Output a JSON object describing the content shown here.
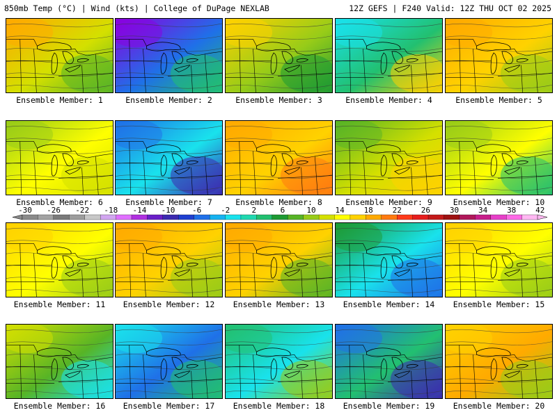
{
  "header": {
    "left": "850mb Temp (°C) | Wind (kts) | College of DuPage NEXLAB",
    "right": "12Z GEFS | F240 Valid: 12Z THU OCT 02 2025"
  },
  "colorbar": {
    "ticks": [
      "-30",
      "-26",
      "-22",
      "-18",
      "-14",
      "-10",
      "-6",
      "-2",
      "2",
      "6",
      "10",
      "14",
      "18",
      "22",
      "26",
      "30",
      "34",
      "38",
      "42"
    ],
    "colors": [
      "#8a8a8a",
      "#a3a3a3",
      "#7a7a7a",
      "#9d9d9d",
      "#c8c8c8",
      "#d2a6f0",
      "#e070ff",
      "#b030e0",
      "#6a1fc8",
      "#3c2ab0",
      "#1f3fd0",
      "#1f70e8",
      "#16b2f0",
      "#19e2ec",
      "#20d8b0",
      "#22c070",
      "#1e9a33",
      "#57b426",
      "#98cc18",
      "#d4e000",
      "#ffff00",
      "#ffd200",
      "#ffaa00",
      "#ff7a10",
      "#ff3a1a",
      "#e61e1e",
      "#c41a1a",
      "#9e1212",
      "#b0185a",
      "#c81e8a",
      "#e640c8",
      "#ff6ae6",
      "#ffb8f2"
    ]
  },
  "members": [
    {
      "label": "Ensemble Member: 1",
      "c1": "#ffaa00",
      "c2": "#d4e000",
      "c3": "#57b426"
    },
    {
      "label": "Ensemble Member: 2",
      "c1": "#8a00e0",
      "c2": "#1f70e8",
      "c3": "#22c070"
    },
    {
      "label": "Ensemble Member: 3",
      "c1": "#ffd200",
      "c2": "#98cc18",
      "c3": "#1e9a33"
    },
    {
      "label": "Ensemble Member: 4",
      "c1": "#19e2ec",
      "c2": "#22c070",
      "c3": "#ffd200"
    },
    {
      "label": "Ensemble Member: 5",
      "c1": "#ffaa00",
      "c2": "#ffd200",
      "c3": "#98cc18"
    },
    {
      "label": "Ensemble Member: 6",
      "c1": "#98cc18",
      "c2": "#ffff00",
      "c3": "#d4e000"
    },
    {
      "label": "Ensemble Member: 7",
      "c1": "#1f70e8",
      "c2": "#19e2ec",
      "c3": "#3c2ab0"
    },
    {
      "label": "Ensemble Member: 8",
      "c1": "#ffaa00",
      "c2": "#ffd200",
      "c3": "#ff7a10"
    },
    {
      "label": "Ensemble Member: 9",
      "c1": "#57b426",
      "c2": "#d4e000",
      "c3": "#ffd200"
    },
    {
      "label": "Ensemble Member: 10",
      "c1": "#98cc18",
      "c2": "#ffff00",
      "c3": "#22c070"
    },
    {
      "label": "Ensemble Member: 11",
      "c1": "#ffd200",
      "c2": "#ffff00",
      "c3": "#98cc18"
    },
    {
      "label": "Ensemble Member: 12",
      "c1": "#ffaa00",
      "c2": "#ffd200",
      "c3": "#98cc18"
    },
    {
      "label": "Ensemble Member: 13",
      "c1": "#ffaa00",
      "c2": "#ffd200",
      "c3": "#57b426"
    },
    {
      "label": "Ensemble Member: 14",
      "c1": "#1e9a33",
      "c2": "#19e2ec",
      "c3": "#1f70e8"
    },
    {
      "label": "Ensemble Member: 15",
      "c1": "#ffd200",
      "c2": "#ffff00",
      "c3": "#98cc18"
    },
    {
      "label": "Ensemble Member: 16",
      "c1": "#d4e000",
      "c2": "#57b426",
      "c3": "#19e2ec"
    },
    {
      "label": "Ensemble Member: 17",
      "c1": "#19e2ec",
      "c2": "#1f70e8",
      "c3": "#22c070"
    },
    {
      "label": "Ensemble Member: 18",
      "c1": "#22c070",
      "c2": "#19e2ec",
      "c3": "#98cc18"
    },
    {
      "label": "Ensemble Member: 19",
      "c1": "#1f70e8",
      "c2": "#22c070",
      "c3": "#3c2ab0"
    },
    {
      "label": "Ensemble Member: 20",
      "c1": "#ffd200",
      "c2": "#ffaa00",
      "c3": "#98cc18"
    }
  ]
}
